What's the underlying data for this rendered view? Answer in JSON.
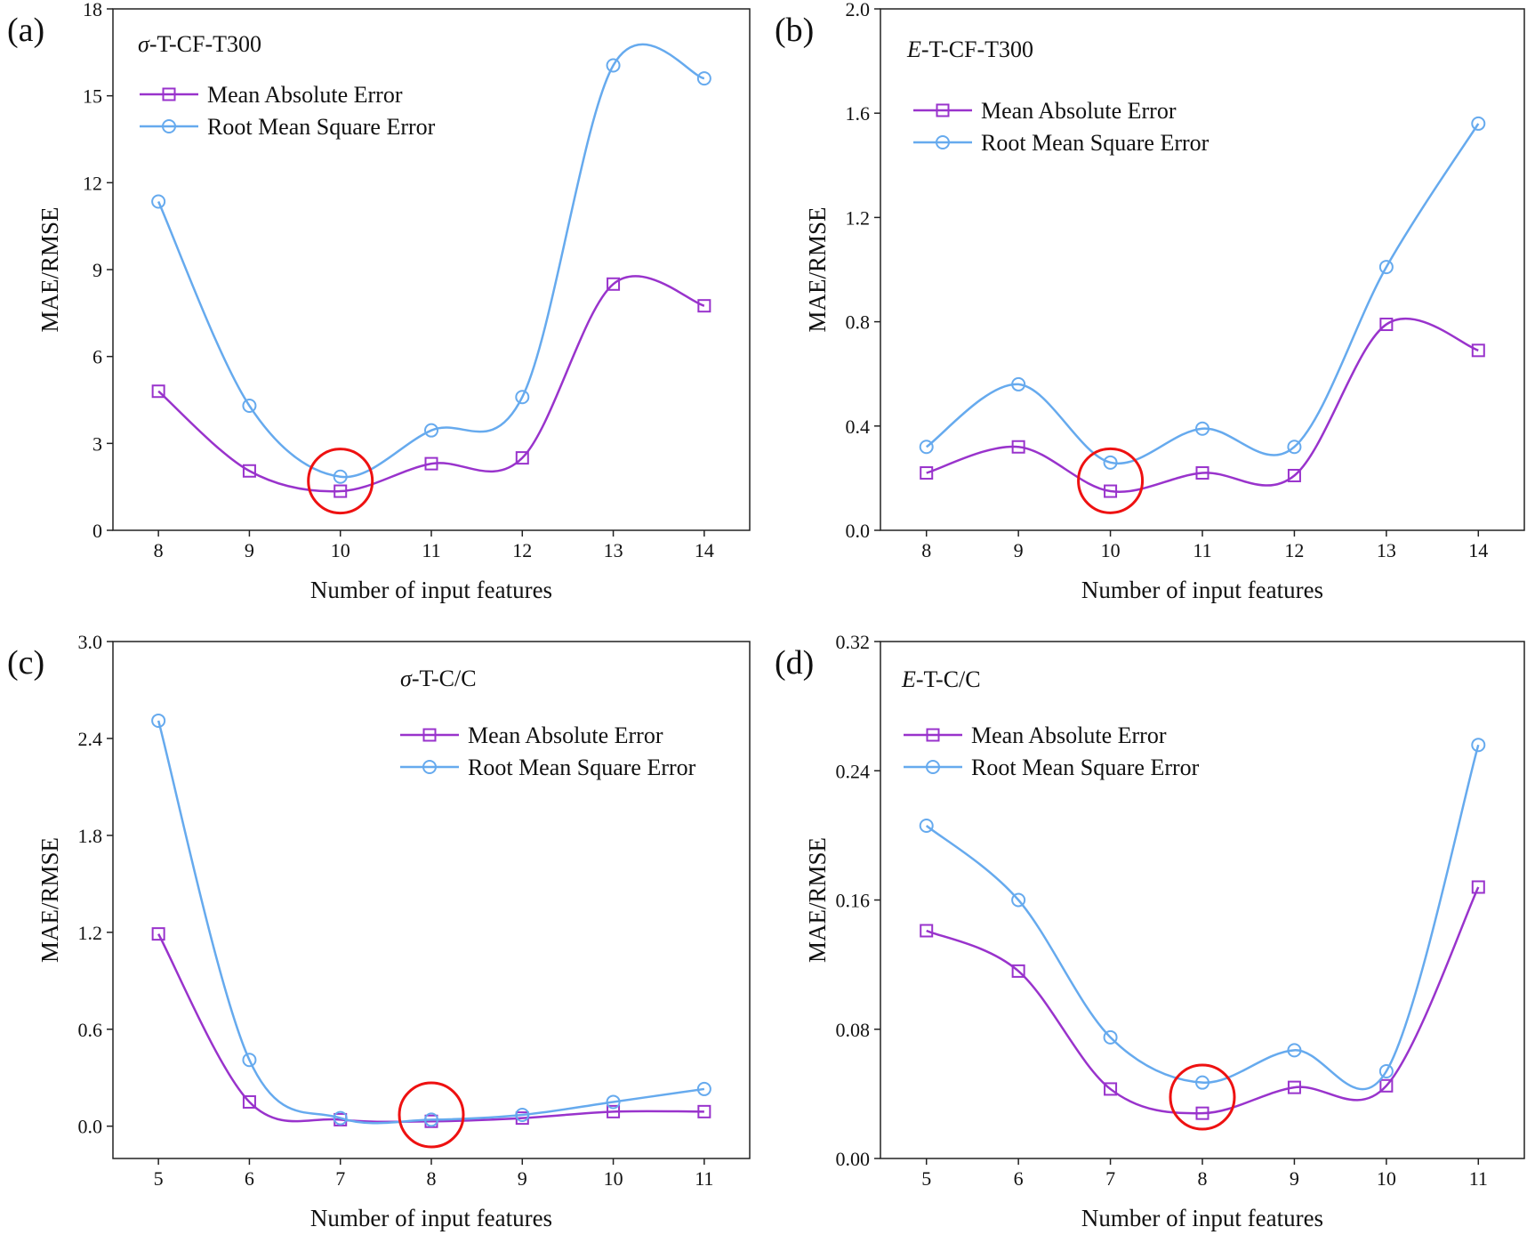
{
  "colors": {
    "mae": "#9933cc",
    "rmse": "#66aaee",
    "highlight": "#ee1111",
    "axis": "#222222"
  },
  "chart_data": [
    {
      "panel_label": "(a)",
      "title_symbol": "σ",
      "title_rest": "-T-CF-T300",
      "type": "line",
      "xlabel": "Number of input features",
      "ylabel": "MAE/RMSE",
      "x": [
        8,
        9,
        10,
        11,
        12,
        13,
        14
      ],
      "xlim": [
        7.5,
        14.5
      ],
      "ylim": [
        0,
        18
      ],
      "yticks": [
        0,
        3,
        6,
        9,
        12,
        15,
        18
      ],
      "ytick_labels": [
        "0",
        "3",
        "6",
        "9",
        "12",
        "15",
        "18"
      ],
      "series": [
        {
          "name": "Mean Absolute Error",
          "marker": "square",
          "values": [
            4.8,
            2.05,
            1.35,
            2.3,
            2.5,
            8.5,
            7.75
          ]
        },
        {
          "name": "Root Mean Square Error",
          "marker": "circle",
          "values": [
            11.35,
            4.3,
            1.85,
            3.45,
            4.6,
            16.05,
            15.6
          ]
        }
      ],
      "highlight": {
        "x": 10,
        "y": 1.7
      },
      "legend_position": "top-left"
    },
    {
      "panel_label": "(b)",
      "title_symbol": "E",
      "title_rest": "-T-CF-T300",
      "type": "line",
      "xlabel": "Number of input features",
      "ylabel": "MAE/RMSE",
      "x": [
        8,
        9,
        10,
        11,
        12,
        13,
        14
      ],
      "xlim": [
        7.5,
        14.5
      ],
      "ylim": [
        0,
        2.0
      ],
      "yticks": [
        0,
        0.4,
        0.8,
        1.2,
        1.6,
        2.0
      ],
      "ytick_labels": [
        "0.0",
        "0.4",
        "0.8",
        "1.2",
        "1.6",
        "2.0"
      ],
      "series": [
        {
          "name": "Mean Absolute Error",
          "marker": "square",
          "values": [
            0.22,
            0.32,
            0.15,
            0.22,
            0.21,
            0.79,
            0.69
          ]
        },
        {
          "name": "Root Mean Square Error",
          "marker": "circle",
          "values": [
            0.32,
            0.56,
            0.26,
            0.39,
            0.32,
            1.01,
            1.56
          ]
        }
      ],
      "highlight": {
        "x": 10,
        "y": 0.19
      },
      "legend_position": "top-left"
    },
    {
      "panel_label": "(c)",
      "title_symbol": "σ",
      "title_rest": "-T-C/C",
      "type": "line",
      "xlabel": "Number of input features",
      "ylabel": "MAE/RMSE",
      "x": [
        5,
        6,
        7,
        8,
        9,
        10,
        11
      ],
      "xlim": [
        4.5,
        11.5
      ],
      "ylim": [
        -0.2,
        3.0
      ],
      "yticks": [
        0,
        0.6,
        1.2,
        1.8,
        2.4,
        3.0
      ],
      "ytick_labels": [
        "0.0",
        "0.6",
        "1.2",
        "1.8",
        "2.4",
        "3.0"
      ],
      "series": [
        {
          "name": "Mean Absolute Error",
          "marker": "square",
          "values": [
            1.19,
            0.15,
            0.04,
            0.03,
            0.05,
            0.09,
            0.09
          ]
        },
        {
          "name": "Root Mean Square Error",
          "marker": "circle",
          "values": [
            2.51,
            0.41,
            0.05,
            0.04,
            0.07,
            0.15,
            0.23
          ]
        }
      ],
      "highlight": {
        "x": 8,
        "y": 0.07
      },
      "legend_position": "top-right"
    },
    {
      "panel_label": "(d)",
      "title_symbol": "E",
      "title_rest": "-T-C/C",
      "type": "line",
      "xlabel": "Number of input features",
      "ylabel": "MAE/RMSE",
      "x": [
        5,
        6,
        7,
        8,
        9,
        10,
        11
      ],
      "xlim": [
        4.5,
        11.5
      ],
      "ylim": [
        0,
        0.32
      ],
      "yticks": [
        0,
        0.08,
        0.16,
        0.24,
        0.32
      ],
      "ytick_labels": [
        "0.00",
        "0.08",
        "0.16",
        "0.24",
        "0.32"
      ],
      "series": [
        {
          "name": "Mean Absolute Error",
          "marker": "square",
          "values": [
            0.141,
            0.116,
            0.043,
            0.028,
            0.044,
            0.045,
            0.168
          ]
        },
        {
          "name": "Root Mean Square Error",
          "marker": "circle",
          "values": [
            0.206,
            0.16,
            0.075,
            0.047,
            0.067,
            0.054,
            0.256
          ]
        }
      ],
      "highlight": {
        "x": 8,
        "y": 0.038
      },
      "legend_position": "top-left"
    }
  ]
}
